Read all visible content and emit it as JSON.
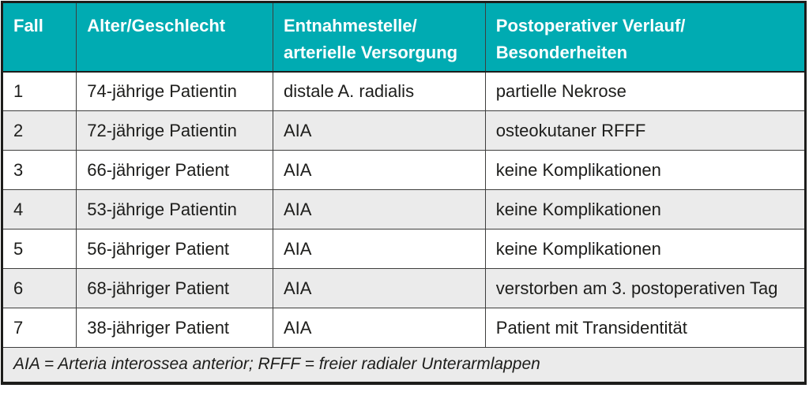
{
  "colors": {
    "header_bg": "#00ABB2",
    "header_text": "#FFFFFF",
    "row_bg": "#FFFFFF",
    "stripe_bg": "#EBEBEB",
    "border_dark": "#1D1D1B",
    "border_inner": "#3E3E3D",
    "text": "#1D1D1B"
  },
  "table": {
    "columns": [
      {
        "label": "Fall"
      },
      {
        "label": "Alter/Geschlecht"
      },
      {
        "label": "Entnahmestelle/\narterielle Versorgung"
      },
      {
        "label": "Postoperativer Verlauf/\nBesonderheiten"
      }
    ],
    "rows": [
      {
        "fall": "1",
        "alter_geschlecht": "74-jährige Patientin",
        "entnahmestelle": "distale A. radialis",
        "verlauf": "partielle Nekrose"
      },
      {
        "fall": "2",
        "alter_geschlecht": "72-jährige Patientin",
        "entnahmestelle": "AIA",
        "verlauf": "osteokutaner RFFF"
      },
      {
        "fall": "3",
        "alter_geschlecht": "66-jähriger Patient",
        "entnahmestelle": "AIA",
        "verlauf": "keine Komplikationen"
      },
      {
        "fall": "4",
        "alter_geschlecht": "53-jährige Patientin",
        "entnahmestelle": "AIA",
        "verlauf": "keine Komplikationen"
      },
      {
        "fall": "5",
        "alter_geschlecht": "56-jähriger Patient",
        "entnahmestelle": "AIA",
        "verlauf": "keine Komplikationen"
      },
      {
        "fall": "6",
        "alter_geschlecht": "68-jähriger Patient",
        "entnahmestelle": "AIA",
        "verlauf": "verstorben am 3. postoperativen Tag"
      },
      {
        "fall": "7",
        "alter_geschlecht": "38-jähriger Patient",
        "entnahmestelle": "AIA",
        "verlauf": "Patient mit Transidentität"
      }
    ],
    "footnote": "AIA = Arteria interossea anterior; RFFF = freier radialer Unterarmlappen"
  }
}
